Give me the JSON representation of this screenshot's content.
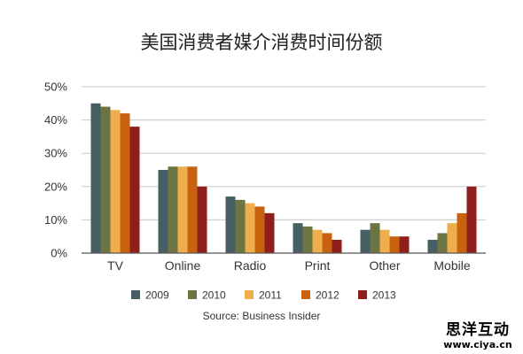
{
  "chart_data": {
    "type": "bar",
    "title": "美国消费者媒介消费时间份额",
    "categories": [
      "TV",
      "Online",
      "Radio",
      "Print",
      "Other",
      "Mobile"
    ],
    "series": [
      {
        "name": "2009",
        "color": "#465f62",
        "values": [
          45,
          25,
          17,
          9,
          7,
          4
        ]
      },
      {
        "name": "2010",
        "color": "#6b7442",
        "values": [
          44,
          26,
          16,
          8,
          9,
          6
        ]
      },
      {
        "name": "2011",
        "color": "#eeae4e",
        "values": [
          43,
          26,
          15,
          7,
          7,
          9
        ]
      },
      {
        "name": "2012",
        "color": "#c9620f",
        "values": [
          42,
          26,
          14,
          6,
          5,
          12
        ]
      },
      {
        "name": "2013",
        "color": "#8e1f1d",
        "values": [
          38,
          20,
          12,
          4,
          5,
          20
        ]
      }
    ],
    "ylim": [
      0,
      50
    ],
    "yticks": [
      "0%",
      "10%",
      "20%",
      "30%",
      "40%",
      "50%"
    ],
    "xlabel": "",
    "ylabel": "",
    "grid": true,
    "legend_position": "bottom",
    "source": "Source: Business Insider"
  },
  "watermark": {
    "text": "思洋互动",
    "url": "www.ciya.cn"
  }
}
